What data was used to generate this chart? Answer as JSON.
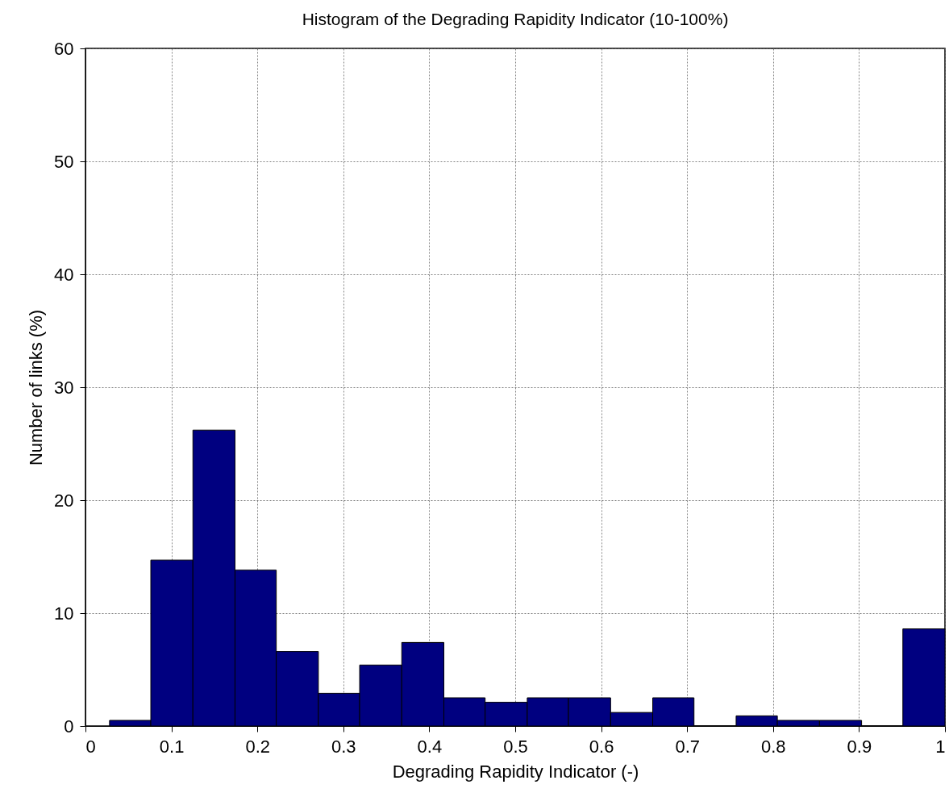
{
  "chart_data": {
    "type": "histogram",
    "title": "Histogram of the Degrading Rapidity Indicator (10-100%)",
    "xlabel": "Degrading Rapidity Indicator (-)",
    "ylabel": "Number of links (%)",
    "bins": [
      0.028,
      0.076,
      0.125,
      0.174,
      0.222,
      0.271,
      0.319,
      0.368,
      0.417,
      0.465,
      0.514,
      0.562,
      0.611,
      0.66,
      0.708,
      0.757,
      0.805,
      0.854,
      0.903,
      0.951,
      1.0
    ],
    "values": [
      0.5,
      14.7,
      26.2,
      13.8,
      6.6,
      2.9,
      5.4,
      7.4,
      2.5,
      2.1,
      2.5,
      2.5,
      1.2,
      2.5,
      0,
      0.9,
      0.5,
      0.5,
      0,
      8.6
    ],
    "color": "#000080",
    "xlim": [
      0,
      1
    ],
    "xticks": [
      0,
      0.1,
      0.2,
      0.3,
      0.4,
      0.5,
      0.6,
      0.7,
      0.8,
      0.9,
      1
    ],
    "ylim": [
      0,
      60
    ],
    "yticks": [
      0,
      10,
      20,
      30,
      40,
      50,
      60
    ],
    "grid": true
  }
}
